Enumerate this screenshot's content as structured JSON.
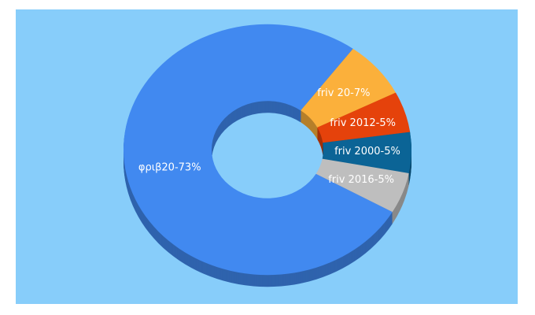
{
  "chart_data": {
    "type": "donut3d",
    "labels": [
      "φριβ20-73%",
      "friv 20-7%",
      "friv 2012-5%",
      "friv 2000-5%",
      "friv 2016-5%"
    ],
    "values": [
      73,
      7,
      5,
      5,
      5
    ],
    "colors": [
      "#4189f0",
      "#fbb03b",
      "#e5420b",
      "#0b6496",
      "#bebebe"
    ],
    "background": "#87cdfa"
  }
}
